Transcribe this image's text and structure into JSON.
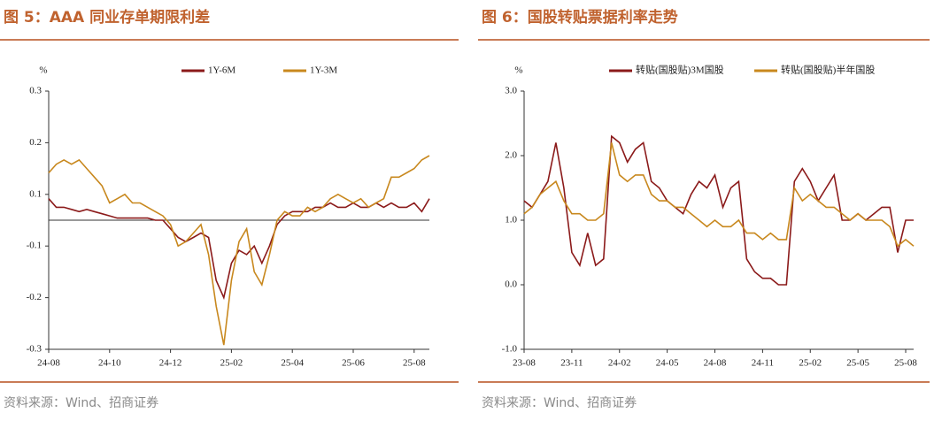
{
  "chart_data": [
    {
      "type": "line",
      "title": "图 5：AAA 同业存单期限利差",
      "source": "资料来源：Wind、招商证券",
      "y_label": "%",
      "zero_line": true,
      "categories": [
        "24-08",
        null,
        null,
        null,
        null,
        null,
        null,
        null,
        "24-10",
        null,
        null,
        null,
        null,
        null,
        null,
        null,
        "24-12",
        null,
        null,
        null,
        null,
        null,
        null,
        null,
        "25-02",
        null,
        null,
        null,
        null,
        null,
        null,
        null,
        "25-04",
        null,
        null,
        null,
        null,
        null,
        null,
        null,
        "25-06",
        null,
        null,
        null,
        null,
        null,
        null,
        null,
        "25-08",
        null,
        null
      ],
      "series": [
        {
          "name": "1Y-6M",
          "color": "#8b1a1a",
          "values": [
            0.05,
            0.03,
            0.03,
            0.025,
            0.02,
            0.025,
            0.02,
            0.015,
            0.01,
            0.005,
            0.005,
            0.005,
            0.005,
            0.005,
            0.0,
            0.0,
            -0.02,
            -0.04,
            -0.05,
            -0.04,
            -0.03,
            -0.04,
            -0.14,
            -0.18,
            -0.1,
            -0.07,
            -0.08,
            -0.06,
            -0.1,
            -0.06,
            -0.01,
            0.01,
            0.02,
            0.02,
            0.02,
            0.03,
            0.03,
            0.04,
            0.03,
            0.03,
            0.04,
            0.03,
            0.03,
            0.04,
            0.03,
            0.04,
            0.03,
            0.03,
            0.04,
            0.02,
            0.05
          ]
        },
        {
          "name": "1Y-3M",
          "color": "#c8881e",
          "values": [
            0.11,
            0.13,
            0.14,
            0.13,
            0.14,
            0.12,
            0.1,
            0.08,
            0.04,
            0.05,
            0.06,
            0.04,
            0.04,
            0.03,
            0.02,
            0.01,
            -0.01,
            -0.06,
            -0.05,
            -0.03,
            -0.01,
            -0.08,
            -0.2,
            -0.29,
            -0.14,
            -0.05,
            -0.02,
            -0.12,
            -0.15,
            -0.08,
            0.0,
            0.02,
            0.01,
            0.01,
            0.03,
            0.02,
            0.03,
            0.05,
            0.06,
            0.05,
            0.04,
            0.05,
            0.03,
            0.04,
            0.05,
            0.1,
            0.1,
            0.11,
            0.12,
            0.14,
            0.15
          ]
        }
      ],
      "ylim": [
        -0.3,
        0.3
      ],
      "yticks": [
        {
          "value": 0.3,
          "label": "0.3"
        },
        {
          "value": 0.18,
          "label": "0.2"
        },
        {
          "value": 0.06,
          "label": "0.1"
        },
        {
          "value": -0.06,
          "label": "-0.1"
        },
        {
          "value": -0.18,
          "label": "-0.2"
        },
        {
          "value": -0.3,
          "label": "-0.3"
        }
      ]
    },
    {
      "type": "line",
      "title": "图 6：国股转贴票据利率走势",
      "source": "资料来源：Wind、招商证券",
      "y_label": "%",
      "zero_line": false,
      "categories": [
        "23-08",
        null,
        null,
        null,
        null,
        null,
        "23-11",
        null,
        null,
        null,
        null,
        null,
        "24-02",
        null,
        null,
        null,
        null,
        null,
        "24-05",
        null,
        null,
        null,
        null,
        null,
        "24-08",
        null,
        null,
        null,
        null,
        null,
        "24-11",
        null,
        null,
        null,
        null,
        null,
        "25-02",
        null,
        null,
        null,
        null,
        null,
        "25-05",
        null,
        null,
        null,
        null,
        null,
        "25-08",
        null
      ],
      "series": [
        {
          "name": "转贴(国股贴)3M国股",
          "color": "#8b1a1a",
          "values": [
            1.3,
            1.2,
            1.4,
            1.6,
            2.2,
            1.5,
            0.5,
            0.3,
            0.8,
            0.3,
            0.4,
            2.3,
            2.2,
            1.9,
            2.1,
            2.2,
            1.6,
            1.5,
            1.3,
            1.2,
            1.1,
            1.4,
            1.6,
            1.5,
            1.7,
            1.2,
            1.5,
            1.6,
            0.4,
            0.2,
            0.1,
            0.1,
            0.0,
            0.0,
            1.6,
            1.8,
            1.6,
            1.3,
            1.5,
            1.7,
            1.0,
            1.0,
            1.1,
            1.0,
            1.1,
            1.2,
            1.2,
            0.5,
            1.0,
            1.0
          ]
        },
        {
          "name": "转贴(国股贴)半年国股",
          "color": "#c8881e",
          "values": [
            1.1,
            1.2,
            1.4,
            1.5,
            1.6,
            1.3,
            1.1,
            1.1,
            1.0,
            1.0,
            1.1,
            2.2,
            1.7,
            1.6,
            1.7,
            1.7,
            1.4,
            1.3,
            1.3,
            1.2,
            1.2,
            1.1,
            1.0,
            0.9,
            1.0,
            0.9,
            0.9,
            1.0,
            0.8,
            0.8,
            0.7,
            0.8,
            0.7,
            0.7,
            1.5,
            1.3,
            1.4,
            1.3,
            1.2,
            1.2,
            1.1,
            1.0,
            1.1,
            1.0,
            1.0,
            1.0,
            0.9,
            0.6,
            0.7,
            0.6
          ]
        }
      ],
      "ylim": [
        -1.0,
        3.0
      ],
      "yticks": [
        {
          "value": 3,
          "label": "3.0"
        },
        {
          "value": 2,
          "label": "2.0"
        },
        {
          "value": 1,
          "label": "1.0"
        },
        {
          "value": 0,
          "label": "0.0"
        },
        {
          "value": -1,
          "label": "-1.0"
        }
      ]
    }
  ]
}
